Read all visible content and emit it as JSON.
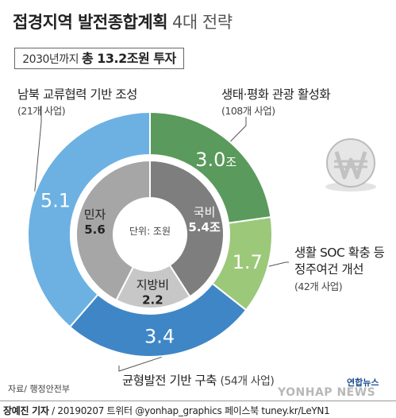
{
  "title": {
    "main": "접경지역 발전종합계획",
    "sub": "4대 전략"
  },
  "summary": {
    "lead": "2030년까지",
    "strong": "총 13.2조원 투자"
  },
  "chart_data": {
    "type": "donut",
    "unit_label": "단위: 조원",
    "outer": [
      {
        "name": "생태·평화 관광 활성화",
        "count": "(108개 사업)",
        "value": 3.0,
        "label": "3.0",
        "suffix": "조",
        "color": "#5a9a5c"
      },
      {
        "name": "생활 SOC 확충 등 정주여건 개선",
        "name_lines": [
          "생활 SOC 확충 등",
          "정주여건 개선"
        ],
        "count": "(42개 사업)",
        "value": 1.7,
        "label": "1.7",
        "suffix": "",
        "color": "#9cc879"
      },
      {
        "name": "균형발전 기반 구축",
        "count": "(54개 사업)",
        "value": 3.4,
        "label": "3.4",
        "suffix": "",
        "color": "#3f86c6"
      },
      {
        "name": "남북 교류협력 기반 조성",
        "count": "(21개 사업)",
        "value": 5.1,
        "label": "5.1",
        "suffix": "",
        "color": "#6cb1e2"
      }
    ],
    "inner": [
      {
        "name": "국비",
        "value": 5.4,
        "label": "5.4조",
        "color": "#7e7e7e"
      },
      {
        "name": "지방비",
        "value": 2.2,
        "label": "2.2",
        "color": "#c7c7c7"
      },
      {
        "name": "민자",
        "value": 5.6,
        "label": "5.6",
        "color": "#a6a6a6"
      }
    ]
  },
  "source": "자료/ 행정안전부",
  "credit": {
    "author": "장예진 기자",
    "rest": " / 20190207 트위터 @yonhap_graphics  페이스북 tuney.kr/LeYN1"
  },
  "brand": {
    "primary": "연합뉴스",
    "secondary": "YONHAP NEWS"
  }
}
